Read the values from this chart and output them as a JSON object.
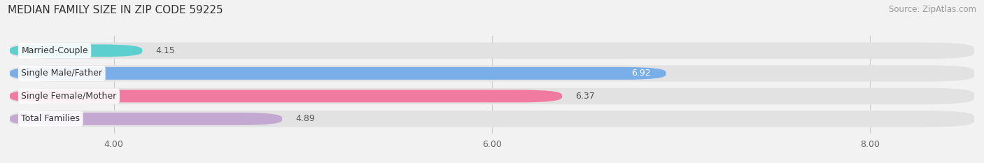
{
  "title": "MEDIAN FAMILY SIZE IN ZIP CODE 59225",
  "source": "Source: ZipAtlas.com",
  "categories": [
    "Married-Couple",
    "Single Male/Father",
    "Single Female/Mother",
    "Total Families"
  ],
  "values": [
    4.15,
    6.92,
    6.37,
    4.89
  ],
  "bar_colors": [
    "#5ecfcf",
    "#7aaee8",
    "#f07aa0",
    "#c3a8d1"
  ],
  "bar_labels": [
    "4.15",
    "6.92",
    "6.37",
    "4.89"
  ],
  "label_inside": [
    false,
    true,
    false,
    false
  ],
  "label_colors_outside": [
    "#555555",
    "#ffffff",
    "#555555",
    "#555555"
  ],
  "xlim": [
    3.45,
    8.55
  ],
  "xticks": [
    4.0,
    6.0,
    8.0
  ],
  "xticklabels": [
    "4.00",
    "6.00",
    "8.00"
  ],
  "background_color": "#f2f2f2",
  "bar_bg_color": "#e2e2e2",
  "title_fontsize": 11,
  "source_fontsize": 8.5,
  "label_fontsize": 9,
  "category_fontsize": 9
}
